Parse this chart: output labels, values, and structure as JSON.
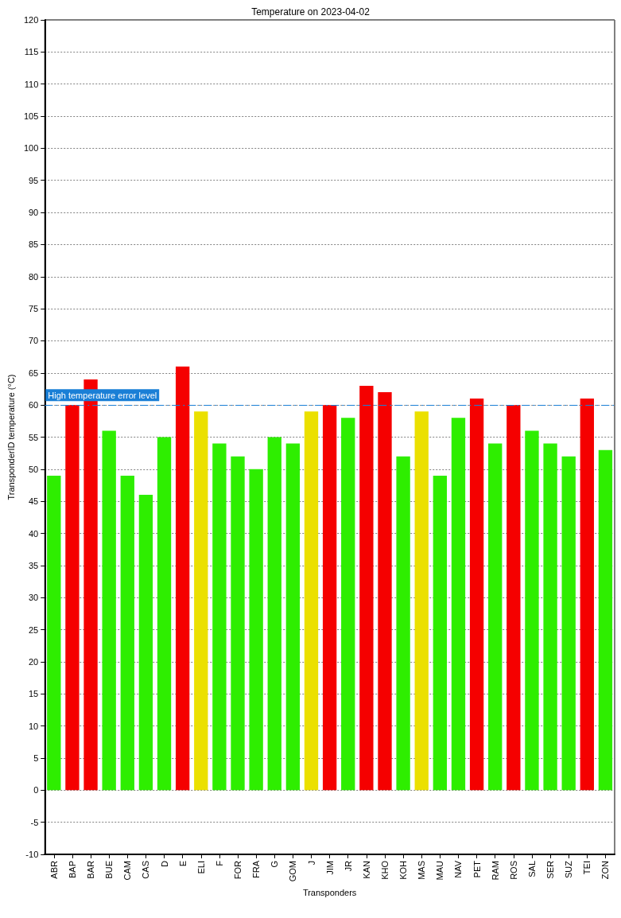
{
  "chart_data": {
    "type": "bar",
    "title": "Temperature on 2023-04-02",
    "xlabel": "Transponders",
    "ylabel": "TransponderID temperature (°C)",
    "categories": [
      "ABR",
      "BAP",
      "BAR",
      "BUE",
      "CAM",
      "CAS",
      "D",
      "E",
      "ELI",
      "F",
      "FOR",
      "FRA",
      "G",
      "GOM",
      "J",
      "JIM",
      "JR",
      "KAN",
      "KHO",
      "KOH",
      "MAS",
      "MAU",
      "NAV",
      "PET",
      "RAM",
      "ROS",
      "SAL",
      "SER",
      "SUZ",
      "TEI",
      "ZON"
    ],
    "values": [
      49,
      60,
      64,
      56,
      49,
      46,
      55,
      66,
      59,
      54,
      52,
      50,
      55,
      54,
      59,
      60,
      58,
      63,
      62,
      52,
      59,
      49,
      58,
      61,
      54,
      60,
      56,
      54,
      52,
      61,
      53
    ],
    "colors": [
      "#2eee00",
      "#f50000",
      "#f50000",
      "#2eee00",
      "#2eee00",
      "#2eee00",
      "#2eee00",
      "#f50000",
      "#ebe000",
      "#2eee00",
      "#2eee00",
      "#2eee00",
      "#2eee00",
      "#2eee00",
      "#ebe000",
      "#f50000",
      "#2eee00",
      "#f50000",
      "#f50000",
      "#2eee00",
      "#ebe000",
      "#2eee00",
      "#2eee00",
      "#f50000",
      "#2eee00",
      "#f50000",
      "#2eee00",
      "#2eee00",
      "#2eee00",
      "#f50000",
      "#2eee00"
    ],
    "ylim": [
      -10,
      120
    ],
    "yticks": [
      -10,
      -5,
      0,
      5,
      10,
      15,
      20,
      25,
      30,
      35,
      40,
      45,
      50,
      55,
      60,
      65,
      70,
      75,
      80,
      85,
      90,
      95,
      100,
      105,
      110,
      115,
      120
    ],
    "grid": "y",
    "ref_lines": [
      {
        "axis": "y",
        "value": 60,
        "label": "High temperature error level",
        "color": "#1a7fd6",
        "line_style": "dashed"
      }
    ]
  }
}
